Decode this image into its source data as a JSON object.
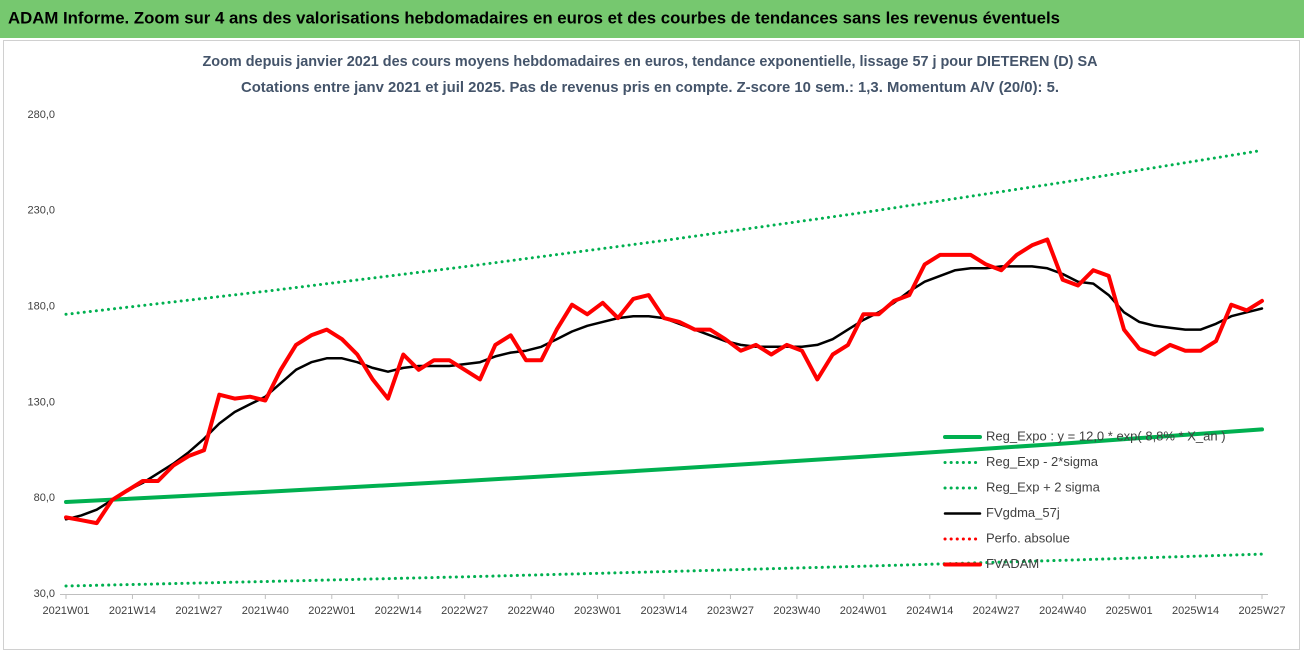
{
  "chart_data": {
    "type": "line",
    "title": "ADAM Informe. Zoom sur 4 ans des valorisations hebdomadaires en euros et des courbes de tendances sans les revenus éventuels",
    "subtitle": [
      "Zoom depuis janvier 2021 des cours moyens hebdomadaires en euros, tendance exponentielle, lissage 57 j pour DIETEREN (D) SA",
      "Cotations entre janv 2021 et juil 2025. Pas de revenus pris en compte. Z-score 10 sem.: 1,3. Momentum A/V (20/0): 5."
    ],
    "xlim": [
      0,
      234
    ],
    "xticks": [
      {
        "value": 0,
        "label": "2021W01"
      },
      {
        "value": 13,
        "label": "2021W14"
      },
      {
        "value": 26,
        "label": "2021W27"
      },
      {
        "value": 39,
        "label": "2021W40"
      },
      {
        "value": 52,
        "label": "2022W01"
      },
      {
        "value": 65,
        "label": "2022W14"
      },
      {
        "value": 78,
        "label": "2022W27"
      },
      {
        "value": 91,
        "label": "2022W40"
      },
      {
        "value": 104,
        "label": "2023W01"
      },
      {
        "value": 117,
        "label": "2023W14"
      },
      {
        "value": 130,
        "label": "2023W27"
      },
      {
        "value": 143,
        "label": "2023W40"
      },
      {
        "value": 156,
        "label": "2024W01"
      },
      {
        "value": 169,
        "label": "2024W14"
      },
      {
        "value": 182,
        "label": "2024W27"
      },
      {
        "value": 195,
        "label": "2024W40"
      },
      {
        "value": 208,
        "label": "2025W01"
      },
      {
        "value": 221,
        "label": "2025W14"
      },
      {
        "value": 234,
        "label": "2025W27"
      }
    ],
    "ylim": [
      30,
      280
    ],
    "yticks": [
      {
        "value": 30,
        "label": "30,0"
      },
      {
        "value": 80,
        "label": "80,0"
      },
      {
        "value": 130,
        "label": "130,0"
      },
      {
        "value": 180,
        "label": "180,0"
      },
      {
        "value": 230,
        "label": "230,0"
      },
      {
        "value": 280,
        "label": "280,0"
      }
    ],
    "grid": false,
    "legend": "lower right",
    "x": [
      0,
      3,
      6,
      9,
      12,
      15,
      18,
      21,
      24,
      27,
      30,
      33,
      36,
      39,
      42,
      45,
      48,
      51,
      54,
      57,
      60,
      63,
      66,
      69,
      72,
      75,
      78,
      81,
      84,
      87,
      90,
      93,
      96,
      99,
      102,
      105,
      108,
      111,
      114,
      117,
      120,
      123,
      126,
      129,
      132,
      135,
      138,
      141,
      144,
      147,
      150,
      153,
      156,
      159,
      162,
      165,
      168,
      171,
      174,
      177,
      180,
      183,
      186,
      189,
      192,
      195,
      198,
      201,
      204,
      207,
      210,
      213,
      216,
      219,
      222,
      225,
      228,
      231,
      234
    ],
    "series": [
      {
        "name": "Reg_Expo : y = 12,0 * exp( 8,8% * X_an )",
        "color": "#00b050",
        "style": "solid",
        "x": [
          0,
          39,
          78,
          117,
          156,
          195,
          234
        ],
        "values": [
          78.0,
          83.3,
          89.0,
          95.1,
          101.6,
          108.5,
          115.9
        ]
      },
      {
        "name": "Reg_Exp - 2*sigma",
        "color": "#00b050",
        "style": "dotted",
        "x": [
          0,
          39,
          78,
          117,
          156,
          195,
          234
        ],
        "values": [
          34.2,
          36.5,
          39.0,
          41.7,
          44.5,
          47.6,
          50.8
        ]
      },
      {
        "name": "Reg_Exp + 2 sigma",
        "color": "#00b050",
        "style": "dotted",
        "x": [
          0,
          39,
          78,
          117,
          156,
          195,
          234
        ],
        "values": [
          176,
          188,
          200.8,
          214.5,
          229.1,
          244.8,
          261.5
        ]
      },
      {
        "name": "FVgdma_57j",
        "color": "#000000",
        "style": "solid",
        "values": [
          69,
          71,
          74,
          79,
          84,
          88,
          93,
          98,
          104,
          111,
          119,
          125,
          129,
          133,
          140,
          147,
          151,
          153,
          153,
          151,
          148,
          146,
          148,
          149,
          149,
          149,
          150,
          151,
          154,
          156,
          157,
          159,
          163,
          167,
          170,
          172,
          174,
          175,
          175,
          174,
          171,
          168,
          165,
          162,
          160,
          159,
          159,
          159,
          159,
          160,
          163,
          168,
          173,
          177,
          182,
          188,
          193,
          196,
          199,
          200,
          200,
          201,
          201,
          201,
          200,
          197,
          193,
          192,
          186,
          177,
          172,
          170,
          169,
          168,
          168,
          171,
          175,
          177,
          179
        ]
      },
      {
        "name": "Perfo. absolue",
        "color": "#ff0000",
        "style": "dotted"
      },
      {
        "name": "FVADAM",
        "color": "#ff0000",
        "style": "solid",
        "values": [
          70,
          68.5,
          67,
          79,
          84,
          89,
          89,
          97,
          102,
          105,
          134,
          132,
          133,
          131,
          147,
          160,
          165,
          168,
          163,
          155,
          142,
          132,
          155,
          147,
          152,
          152,
          147,
          142,
          160,
          165,
          152,
          152,
          168,
          181,
          176,
          182,
          174,
          184,
          186,
          174,
          172,
          168,
          168,
          163,
          157,
          160,
          155,
          160,
          157,
          142,
          155,
          160,
          176,
          176,
          183,
          186,
          202,
          207,
          207,
          207,
          202,
          199,
          207,
          212,
          215,
          194,
          191,
          199,
          196,
          168,
          158,
          155,
          160,
          157,
          157,
          162,
          181,
          178,
          183
        ]
      }
    ]
  }
}
